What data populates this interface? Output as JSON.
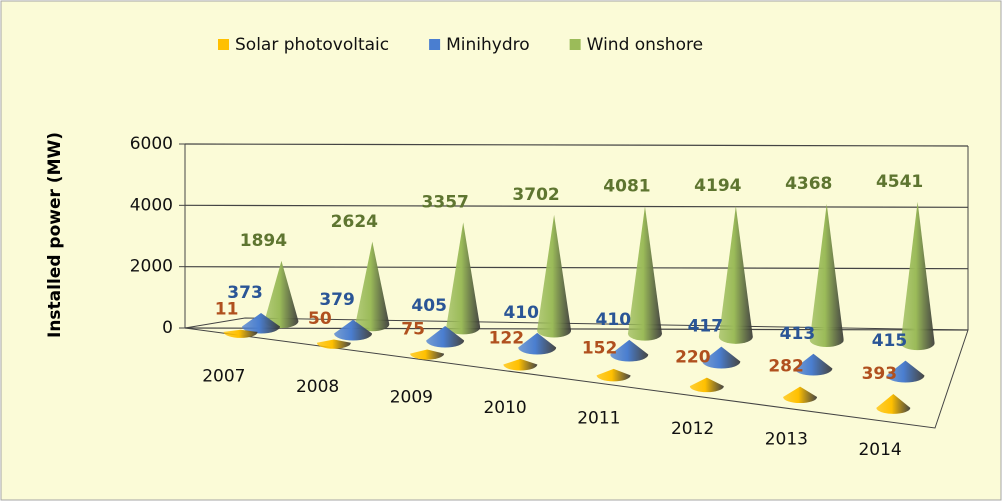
{
  "chart_data": {
    "type": "cone3d",
    "ylabel": "Installed power (MW)",
    "categories": [
      "2007",
      "2008",
      "2009",
      "2010",
      "2011",
      "2012",
      "2013",
      "2014"
    ],
    "series": [
      {
        "name": "Solar photovoltaic",
        "color": "#ffc000",
        "label_color": "#b0501e",
        "values": [
          11,
          50,
          75,
          122,
          152,
          220,
          282,
          393
        ]
      },
      {
        "name": "Minihydro",
        "color": "#4a7ed0",
        "label_color": "#2a5596",
        "values": [
          373,
          379,
          405,
          410,
          410,
          417,
          413,
          415
        ]
      },
      {
        "name": "Wind onshore",
        "color": "#9bbb59",
        "label_color": "#5e7530",
        "values": [
          1894,
          2624,
          3357,
          3702,
          4081,
          4194,
          4368,
          4541
        ]
      }
    ],
    "ylim": [
      0,
      6000
    ],
    "yticks": [
      0,
      2000,
      4000,
      6000
    ],
    "grid": true,
    "legend": "top"
  }
}
